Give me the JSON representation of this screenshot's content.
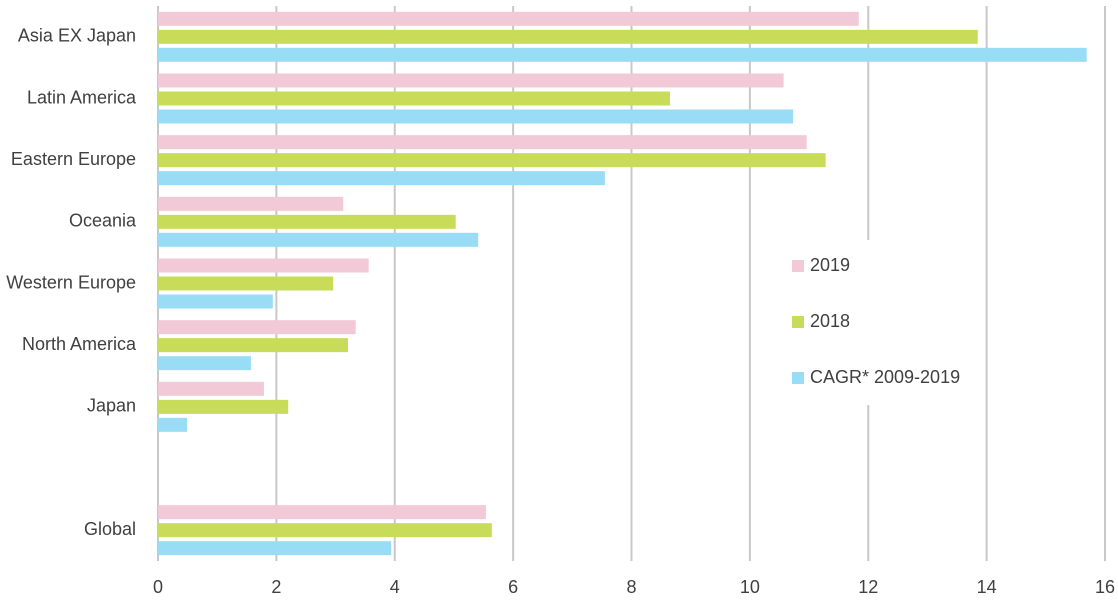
{
  "chart_data": {
    "type": "bar",
    "orientation": "horizontal",
    "categories": [
      "Asia EX Japan",
      "Latin America",
      "Eastern Europe",
      "Oceania",
      "Western Europe",
      "North America",
      "Japan",
      null,
      "Global"
    ],
    "series": [
      {
        "name": "2019",
        "color": "#f2c9d6",
        "values": [
          11.84,
          10.57,
          10.96,
          3.13,
          3.56,
          3.34,
          1.79,
          null,
          5.54
        ]
      },
      {
        "name": "2018",
        "color": "#c8dc5a",
        "values": [
          13.85,
          8.65,
          11.28,
          5.03,
          2.96,
          3.21,
          2.2,
          null,
          5.64
        ]
      },
      {
        "name": "CAGR* 2009-2019",
        "color": "#99dcf5",
        "values": [
          15.69,
          10.73,
          7.55,
          5.41,
          1.94,
          1.57,
          0.49,
          null,
          3.94
        ]
      }
    ],
    "xlim": [
      0,
      16
    ],
    "xticks": [
      0,
      2,
      4,
      6,
      8,
      10,
      12,
      14,
      16
    ],
    "grid": true,
    "legend": "right"
  }
}
